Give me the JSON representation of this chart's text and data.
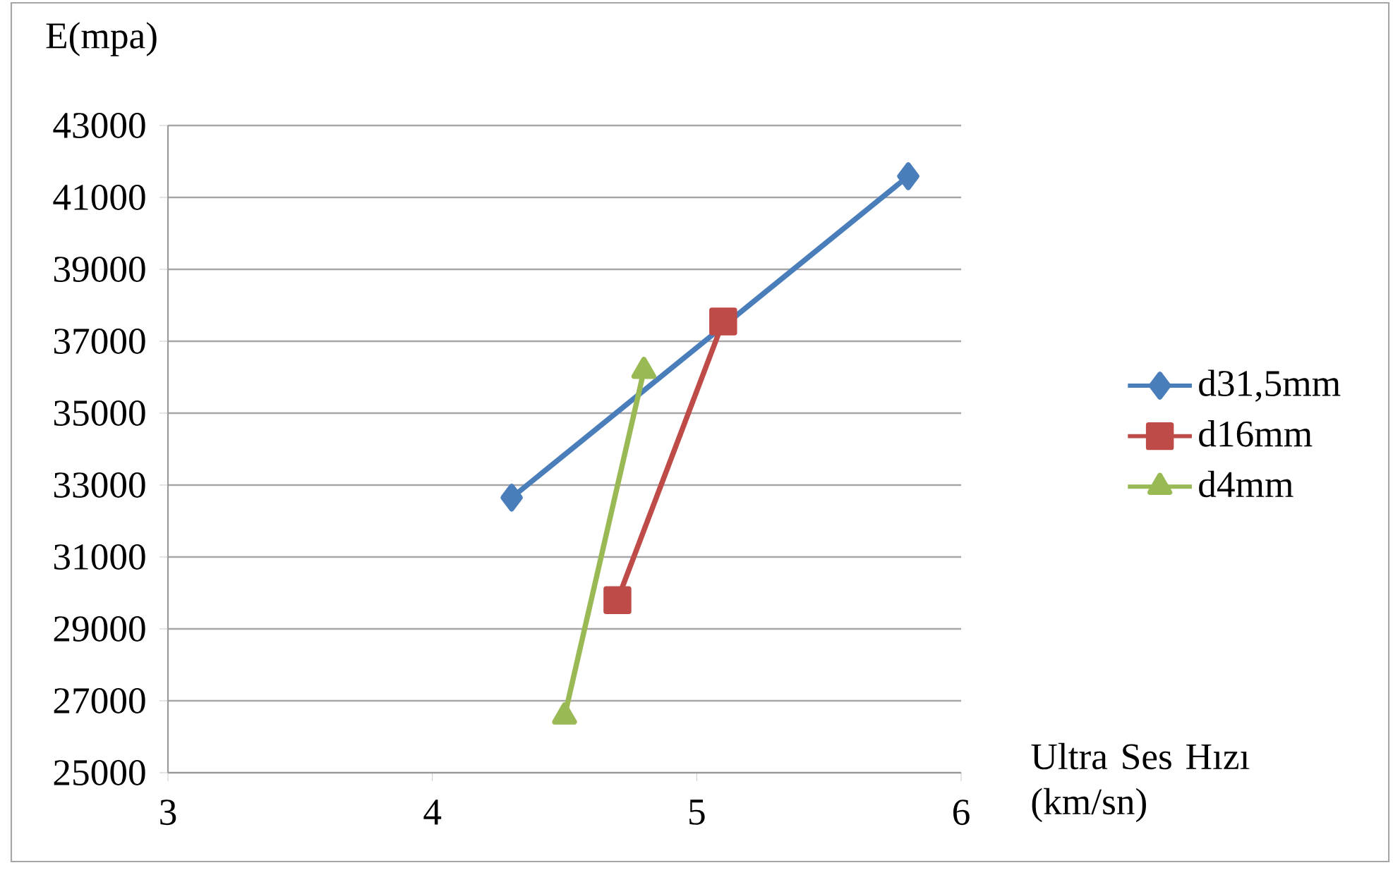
{
  "chart_data": {
    "type": "line",
    "ylabel": "E(mpa)",
    "xlabel": "Ultra Ses Hızı (km/sn)",
    "series": [
      {
        "name": "d31,5mm",
        "color": "#4a7ebb",
        "marker": "diamond",
        "x": [
          4.3,
          5.8
        ],
        "values": [
          32650,
          41590
        ]
      },
      {
        "name": "d16mm",
        "color": "#be4b48",
        "marker": "square",
        "x": [
          4.7,
          5.1
        ],
        "values": [
          29800,
          37550
        ]
      },
      {
        "name": "d4mm",
        "color": "#98b954",
        "marker": "triangle",
        "x": [
          4.5,
          4.8
        ],
        "values": [
          26570,
          36180
        ]
      }
    ],
    "xlim": [
      3,
      6
    ],
    "xticks": [
      3,
      4,
      5,
      6
    ],
    "ylim": [
      25000,
      43000
    ],
    "yticks": [
      25000,
      27000,
      29000,
      31000,
      33000,
      35000,
      37000,
      39000,
      41000,
      43000
    ],
    "grid": "y",
    "legend": "right",
    "line_style": "solid"
  }
}
